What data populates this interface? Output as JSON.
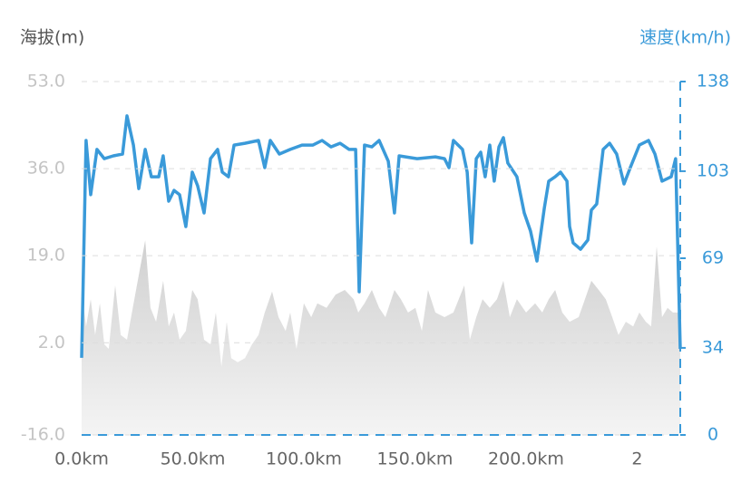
{
  "chart_data": {
    "type": "line",
    "y_label": "海拔(m)",
    "y2_label": "速度(km/h)",
    "xlim": [
      0,
      269.4
    ],
    "xticks": [
      {
        "value": 0,
        "label": "0.0km"
      },
      {
        "value": 50,
        "label": "50.0km"
      },
      {
        "value": 100,
        "label": "100.0km"
      },
      {
        "value": 150,
        "label": "150.0km"
      },
      {
        "value": 200,
        "label": "200.0km"
      },
      {
        "value": 250,
        "label": "2"
      }
    ],
    "ylim": [
      -16,
      53
    ],
    "yticks": [
      {
        "value": 53,
        "label": "53.0"
      },
      {
        "value": 36,
        "label": "36.0"
      },
      {
        "value": 19,
        "label": "19.0"
      },
      {
        "value": 2,
        "label": "2.0"
      },
      {
        "value": -16,
        "label": "-16.0"
      }
    ],
    "y2lim": [
      0,
      138
    ],
    "y2ticks": [
      138,
      103,
      69,
      34,
      0
    ],
    "grid": true,
    "series": [
      {
        "style": "area",
        "color": "#d4d4d4",
        "x": [
          0,
          2.0,
          4.1,
          6.1,
          8.2,
          10.2,
          12.2,
          15.1,
          17.6,
          20.4,
          24.5,
          28.6,
          31.0,
          33.5,
          36.7,
          39.2,
          41.6,
          44.1,
          46.9,
          49.8,
          52.2,
          55.1,
          58.0,
          60.4,
          62.9,
          65.3,
          67.3,
          70.2,
          73.5,
          76.7,
          79.6,
          82.4,
          85.7,
          88.6,
          91.8,
          93.9,
          96.7,
          100.0,
          103.3,
          106.1,
          110.2,
          114.3,
          118.4,
          122.4,
          124.5,
          127.3,
          130.6,
          133.9,
          136.7,
          140.8,
          143.7,
          146.9,
          150.2,
          153.1,
          155.9,
          159.2,
          163.3,
          167.3,
          172.2,
          174.7,
          177.6,
          180.4,
          183.7,
          186.9,
          189.8,
          192.7,
          195.9,
          200.0,
          204.1,
          207.3,
          210.2,
          213.1,
          216.3,
          219.6,
          223.7,
          226.5,
          229.4,
          232.7,
          235.9,
          238.8,
          241.6,
          244.9,
          248.2,
          251.0,
          253.9,
          256.3,
          258.8,
          261.2,
          263.7,
          266.1,
          268.6,
          269.4
        ],
        "values": [
          12.3,
          5.2,
          10.5,
          3.5,
          9.7,
          1.7,
          0.8,
          13.2,
          3.5,
          2.6,
          12.3,
          22.0,
          8.8,
          6.1,
          14.1,
          5.2,
          7.9,
          2.6,
          4.3,
          12.3,
          10.5,
          2.6,
          1.7,
          7.9,
          -2.7,
          6.1,
          -1.0,
          -1.8,
          -1.0,
          1.7,
          3.5,
          7.9,
          12.0,
          7.0,
          4.3,
          7.9,
          0.8,
          9.7,
          7.0,
          9.7,
          8.8,
          11.4,
          12.3,
          10.5,
          7.9,
          9.7,
          12.3,
          8.8,
          7.0,
          12.3,
          10.5,
          7.9,
          8.8,
          4.3,
          12.3,
          7.9,
          7.0,
          7.9,
          13.2,
          2.6,
          7.0,
          10.5,
          8.8,
          10.5,
          14.1,
          7.0,
          10.5,
          7.9,
          9.7,
          7.9,
          10.5,
          12.3,
          7.9,
          6.1,
          7.0,
          10.5,
          14.1,
          12.3,
          10.5,
          7.0,
          3.5,
          6.1,
          5.2,
          7.9,
          6.1,
          5.2,
          20.8,
          7.0,
          8.8,
          7.9,
          7.9,
          1.7
        ]
      },
      {
        "style": "line",
        "axis": "y2",
        "color": "#3a9ad9",
        "x": [
          0,
          2.0,
          4.1,
          6.9,
          10.2,
          14.3,
          18.4,
          20.4,
          23.3,
          25.7,
          28.6,
          31.4,
          34.7,
          36.7,
          39.2,
          41.6,
          44.1,
          46.9,
          49.8,
          52.2,
          55.1,
          58.0,
          61.2,
          63.3,
          66.1,
          68.6,
          73.5,
          79.6,
          82.4,
          84.9,
          89.0,
          93.9,
          99.2,
          104.1,
          108.2,
          112.2,
          116.3,
          120.4,
          123.3,
          124.9,
          127.3,
          130.6,
          133.9,
          138.0,
          140.8,
          142.9,
          151.0,
          159.2,
          163.3,
          165.3,
          167.3,
          171.4,
          173.5,
          175.5,
          177.6,
          179.6,
          181.6,
          183.7,
          185.7,
          187.8,
          189.8,
          191.8,
          195.9,
          199.2,
          202.0,
          204.9,
          208.2,
          210.2,
          213.1,
          215.5,
          218.4,
          219.6,
          221.2,
          224.5,
          227.8,
          229.4,
          231.8,
          234.7,
          237.6,
          240.8,
          244.1,
          246.9,
          251.0,
          255.1,
          258.0,
          261.2,
          265.3,
          267.3,
          269.4
        ],
        "values": [
          30.1,
          115.0,
          93.8,
          111.5,
          107.9,
          109.0,
          109.7,
          124.6,
          113.2,
          96.2,
          111.5,
          100.8,
          100.8,
          109.0,
          91.3,
          95.5,
          93.8,
          81.4,
          102.6,
          97.3,
          86.7,
          107.9,
          111.5,
          102.6,
          100.8,
          113.2,
          113.9,
          115.0,
          104.4,
          115.0,
          109.7,
          111.5,
          113.2,
          113.2,
          115.0,
          112.5,
          113.9,
          111.5,
          111.5,
          55.9,
          113.2,
          112.5,
          115.0,
          106.9,
          86.7,
          109.0,
          107.9,
          108.6,
          107.9,
          104.4,
          115.0,
          111.5,
          102.6,
          75.0,
          107.9,
          110.4,
          100.8,
          113.2,
          99.1,
          112.5,
          116.1,
          106.2,
          100.8,
          86.7,
          79.6,
          67.9,
          88.5,
          99.1,
          100.8,
          102.6,
          99.1,
          81.4,
          75.0,
          72.5,
          76.1,
          87.8,
          90.2,
          111.5,
          113.9,
          109.7,
          98.0,
          104.4,
          113.2,
          115.0,
          109.7,
          99.1,
          100.8,
          107.9,
          33.6
        ]
      }
    ]
  }
}
